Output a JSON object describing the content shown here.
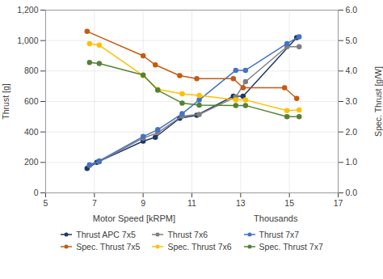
{
  "chart_data": {
    "type": "line",
    "xlabel": "Motor Speed [kRPM]",
    "annotations": [
      "Thousands"
    ],
    "ylabel": "Thrust [g]",
    "y2label": "Spec. Thrust [g/W]",
    "xlim": [
      5,
      17
    ],
    "xticks": [
      5,
      7,
      9,
      11,
      13,
      15,
      17
    ],
    "ylim": [
      0,
      1200
    ],
    "yticks": [
      0,
      200,
      400,
      600,
      800,
      1000,
      1200
    ],
    "y2lim": [
      0,
      6
    ],
    "y2ticks": [
      0,
      1,
      2,
      3,
      4,
      5,
      6
    ],
    "grid": true,
    "legend": "bottom",
    "marker": "circle",
    "series": [
      {
        "name": "Thrust APC 7x5",
        "color": "#1f3864",
        "axis": "y",
        "x": [
          6.7,
          7.1,
          9.0,
          9.5,
          10.5,
          11.2,
          12.7,
          13.1,
          15.3
        ],
        "values": [
          160,
          200,
          340,
          365,
          490,
          510,
          635,
          635,
          1020
        ]
      },
      {
        "name": "Thrust 7x6",
        "color": "#7f7f7f",
        "axis": "y",
        "x": [
          6.8,
          7.2,
          9.0,
          9.6,
          10.6,
          11.3,
          12.8,
          13.2,
          14.9,
          15.4
        ],
        "values": [
          180,
          205,
          360,
          395,
          505,
          515,
          630,
          730,
          960,
          960
        ]
      },
      {
        "name": "Thrust 7x7",
        "color": "#4472c4",
        "axis": "y",
        "x": [
          6.8,
          7.2,
          9.0,
          9.6,
          10.6,
          11.3,
          12.8,
          13.2,
          14.9,
          15.4
        ],
        "values": [
          185,
          210,
          370,
          415,
          520,
          610,
          805,
          805,
          980,
          1025
        ]
      },
      {
        "name": "Spec. Thrust 7x5",
        "color": "#c55a11",
        "axis": "y2",
        "x": [
          6.7,
          9.0,
          9.5,
          10.5,
          11.2,
          12.7,
          13.1,
          14.8,
          15.3
        ],
        "values": [
          5.3,
          4.5,
          4.2,
          3.85,
          3.75,
          3.75,
          3.45,
          3.45,
          3.1
        ]
      },
      {
        "name": "Spec. Thrust 7x6",
        "color": "#ffc000",
        "axis": "y2",
        "x": [
          6.8,
          7.2,
          9.0,
          9.6,
          10.6,
          11.3,
          12.8,
          13.2,
          14.9,
          15.4
        ],
        "values": [
          4.9,
          4.85,
          3.85,
          3.4,
          3.25,
          3.2,
          3.05,
          3.05,
          2.7,
          2.72
        ]
      },
      {
        "name": "Spec. Thrust 7x7",
        "color": "#548235",
        "axis": "y2",
        "x": [
          6.8,
          7.2,
          9.0,
          9.6,
          10.6,
          11.3,
          12.8,
          13.2,
          14.9,
          15.4
        ],
        "values": [
          4.28,
          4.25,
          3.87,
          3.37,
          2.95,
          2.88,
          2.87,
          2.87,
          2.5,
          2.5
        ]
      }
    ]
  }
}
